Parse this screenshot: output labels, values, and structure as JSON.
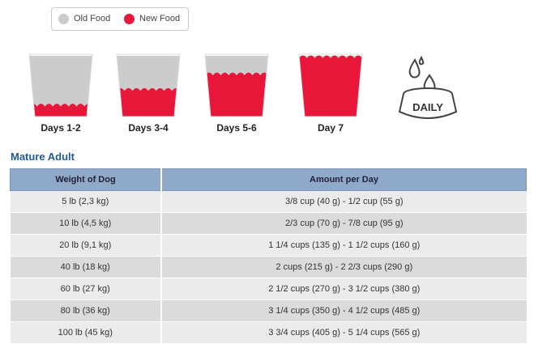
{
  "legend": {
    "items": [
      {
        "label": "Old Food",
        "color": "#cccccc"
      },
      {
        "label": "New Food",
        "color": "#e8173a"
      }
    ]
  },
  "transition": {
    "days": [
      {
        "label": "Days 1-2",
        "new_food_fraction": 0.2
      },
      {
        "label": "Days 3-4",
        "new_food_fraction": 0.45
      },
      {
        "label": "Days 5-6",
        "new_food_fraction": 0.7
      },
      {
        "label": "Day 7",
        "new_food_fraction": 1.0
      }
    ],
    "daily_icon": {
      "name": "daily-bowl-icon",
      "text": "DAILY"
    }
  },
  "section": {
    "title": "Mature Adult"
  },
  "table": {
    "headers": [
      "Weight of Dog",
      "Amount per Day"
    ],
    "rows": [
      [
        "5 lb (2,3 kg)",
        "3/8 cup (40 g) - 1/2 cup (55 g)"
      ],
      [
        "10 lb (4,5 kg)",
        "2/3 cup (70 g) - 7/8 cup (95 g)"
      ],
      [
        "20 lb (9,1 kg)",
        "1 1/4 cups (135 g) - 1 1/2 cups (160 g)"
      ],
      [
        "40 lb (18 kg)",
        "2 cups (215 g) - 2 2/3 cups (290 g)"
      ],
      [
        "60 lb (27 kg)",
        "2 1/2 cups (270 g) - 3 1/2 cups (380 g)"
      ],
      [
        "80 lb (36 kg)",
        "3 1/4 cups (350 g) - 4 1/2 cups (485 g)"
      ],
      [
        "100 lb (45 kg)",
        "3 3/4 cups (405 g) - 5 1/4 cups (565 g)"
      ]
    ]
  },
  "colors": {
    "old_food": "#cccccc",
    "new_food": "#e8173a",
    "title": "#1f5a93",
    "header_bg": "#8fa9cb"
  }
}
